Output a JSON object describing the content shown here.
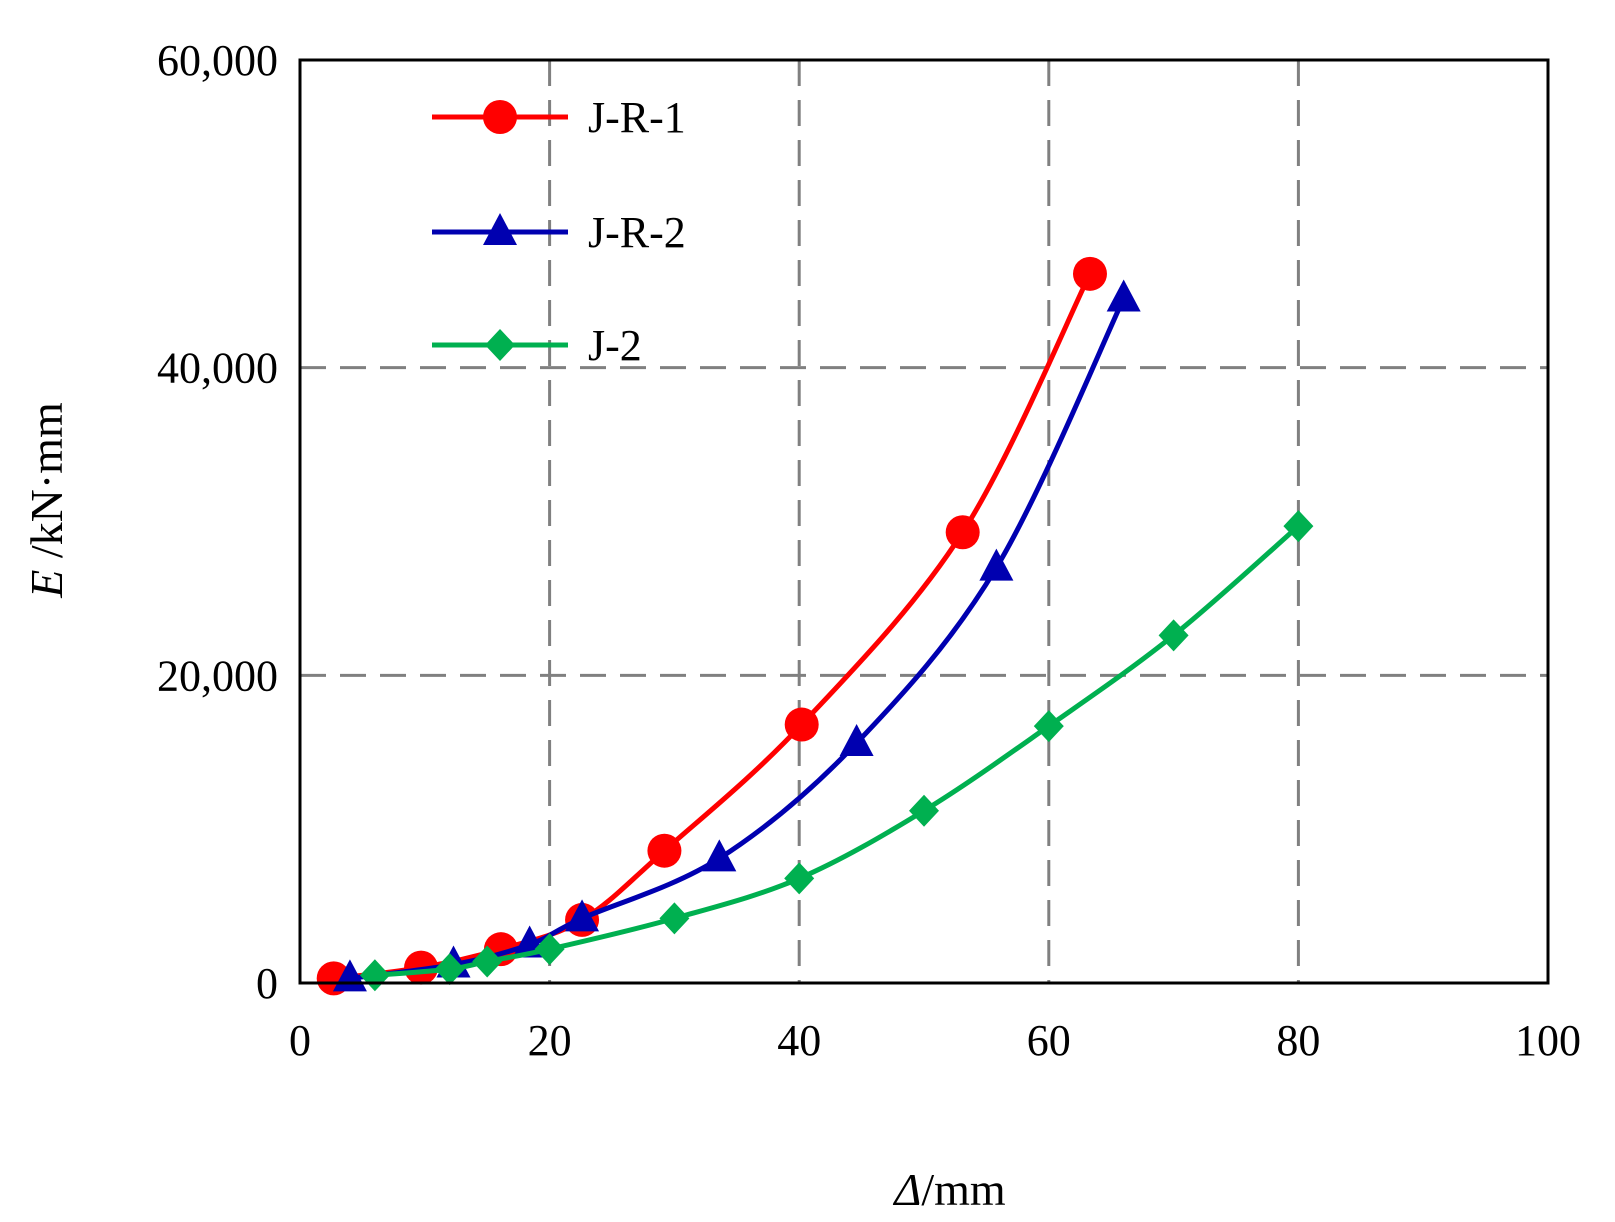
{
  "chart_data": {
    "type": "line",
    "title": "",
    "xlabel_italic": "Δ",
    "xlabel_rest": "/mm",
    "ylabel_italic": "E",
    "ylabel_rest": " /kN·mm",
    "xlim": [
      0,
      100
    ],
    "ylim": [
      0,
      60000
    ],
    "x_ticks": [
      0,
      20,
      40,
      60,
      80,
      100
    ],
    "x_tick_labels": [
      "0",
      "20",
      "40",
      "60",
      "80",
      "100"
    ],
    "y_ticks": [
      0,
      20000,
      40000,
      60000
    ],
    "y_tick_labels": [
      "0",
      "20,000",
      "40,000",
      "60,000"
    ],
    "grid": true,
    "legend_position": "top-left",
    "series": [
      {
        "name": "J-R-1",
        "color": "#ff0000",
        "marker": "circle",
        "x": [
          2.7,
          9.7,
          16.1,
          22.6,
          29.2,
          40.2,
          53.1,
          63.3
        ],
        "y": [
          300,
          1000,
          2200,
          4100,
          8600,
          16800,
          29300,
          46100
        ]
      },
      {
        "name": "J-R-2",
        "color": "#0000b0",
        "marker": "triangle",
        "x": [
          4.0,
          12.3,
          18.4,
          22.6,
          33.6,
          44.6,
          55.8,
          66.0
        ],
        "y": [
          300,
          1200,
          2500,
          4200,
          8100,
          15600,
          27000,
          44500
        ]
      },
      {
        "name": "J-2",
        "color": "#00b050",
        "marker": "diamond",
        "x": [
          6.0,
          12.0,
          15.0,
          20.0,
          30.0,
          40.0,
          50.0,
          60.0,
          70.0,
          80.0
        ],
        "y": [
          500,
          900,
          1400,
          2200,
          4200,
          6800,
          11200,
          16700,
          22600,
          29700
        ]
      }
    ]
  }
}
